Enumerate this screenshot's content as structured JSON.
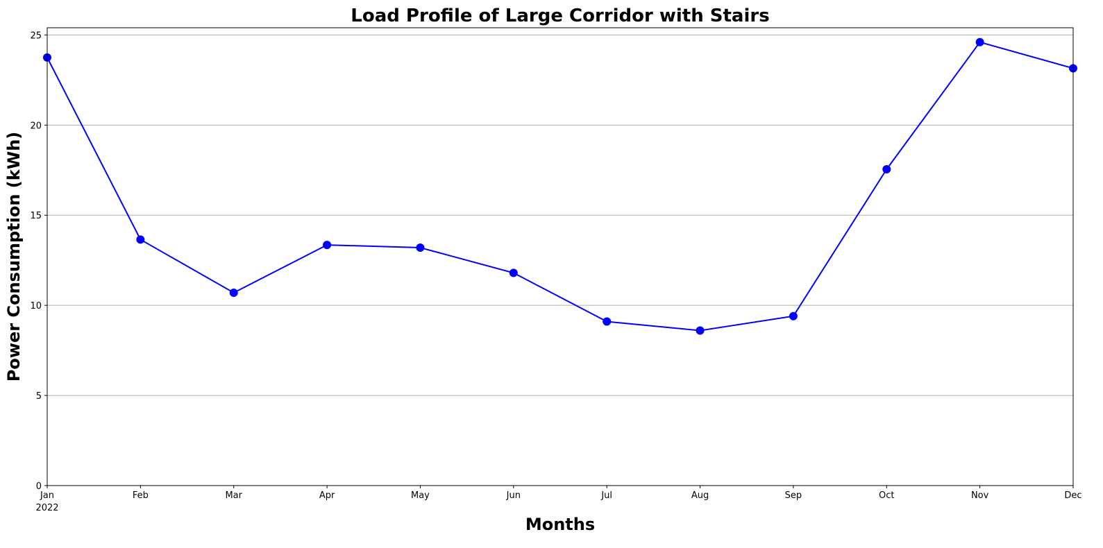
{
  "chart_data": {
    "type": "line",
    "title": "Load Profile of Large Corridor with Stairs",
    "xlabel": "Months",
    "ylabel": "Power Consumption (kWh)",
    "categories": [
      "Jan",
      "Feb",
      "Mar",
      "Apr",
      "May",
      "Jun",
      "Jul",
      "Aug",
      "Sep",
      "Oct",
      "Nov",
      "Dec"
    ],
    "year_label": "2022",
    "series": [
      {
        "values": [
          23.75,
          13.65,
          10.7,
          13.35,
          13.2,
          11.8,
          9.1,
          8.6,
          9.4,
          17.55,
          24.6,
          23.15
        ],
        "color": "#0000ff",
        "marker": "circle"
      }
    ],
    "ylim": [
      0,
      25.4
    ],
    "yticks": [
      0,
      5,
      10,
      15,
      20,
      25
    ],
    "grid": "horizontal"
  }
}
